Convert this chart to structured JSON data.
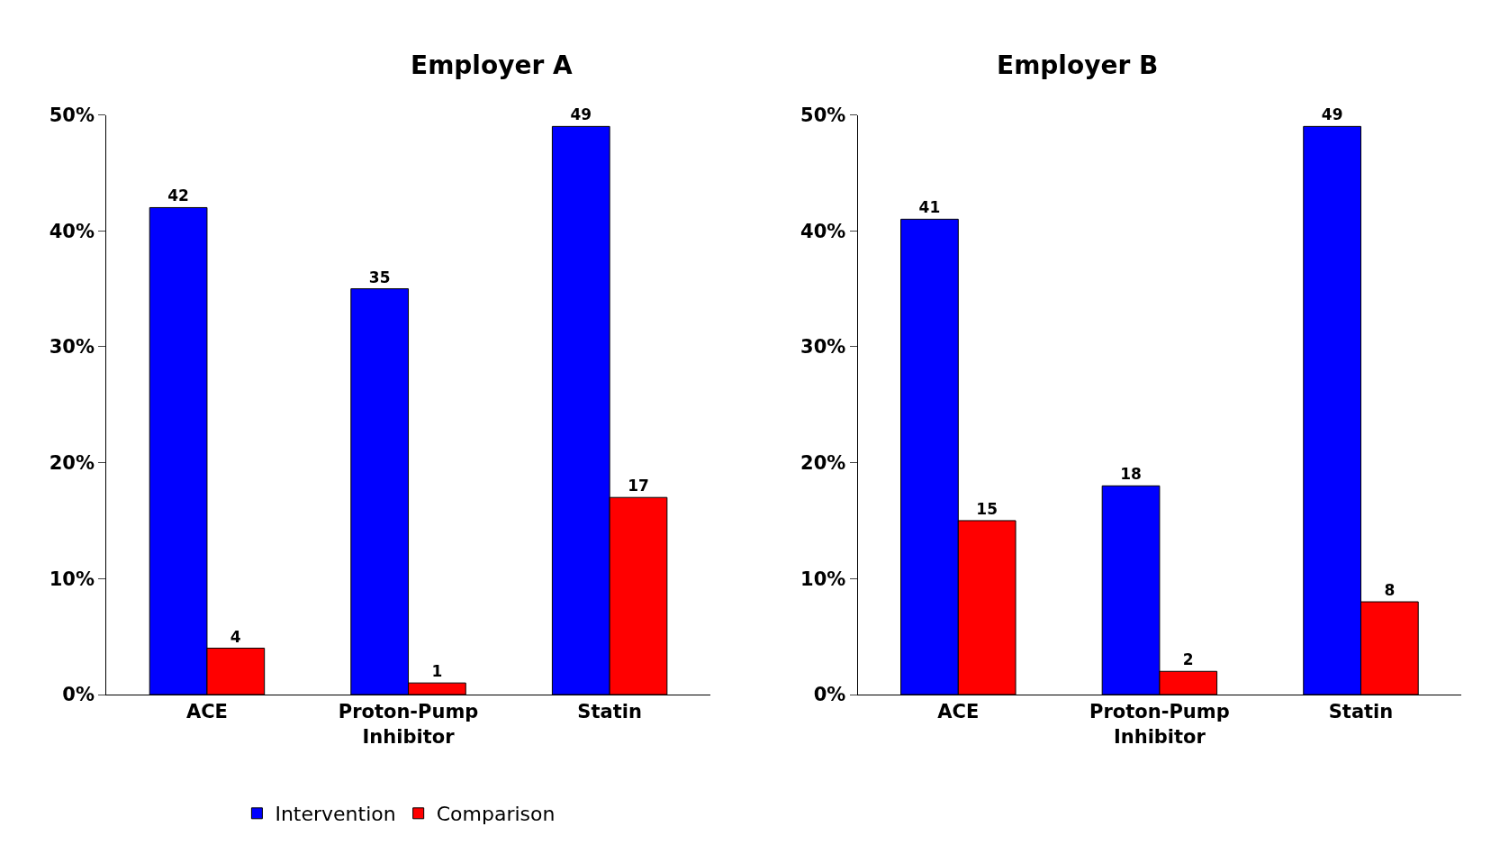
{
  "chart_data": [
    {
      "type": "bar",
      "title": "Employer A",
      "categories": [
        "ACE",
        "Proton-Pump Inhibitor",
        "Statin"
      ],
      "series": [
        {
          "name": "Intervention",
          "color": "#0000ff",
          "values": [
            42,
            35,
            49
          ]
        },
        {
          "name": "Comparison",
          "color": "#ff0000",
          "values": [
            4,
            1,
            17
          ]
        }
      ],
      "ylim": [
        0,
        50
      ],
      "yticks": [
        {
          "value": 0,
          "label": "0%"
        },
        {
          "value": 10,
          "label": "10%"
        },
        {
          "value": 20,
          "label": "20%"
        },
        {
          "value": 30,
          "label": "30%"
        },
        {
          "value": 40,
          "label": "40%"
        },
        {
          "value": 50,
          "label": "50%"
        }
      ],
      "data_labels": true,
      "legend": "bottom"
    },
    {
      "type": "bar",
      "title": "Employer B",
      "categories": [
        "ACE",
        "Proton-Pump Inhibitor",
        "Statin"
      ],
      "series": [
        {
          "color": "#0000ff",
          "values": [
            41,
            18,
            49
          ]
        },
        {
          "color": "#ff0000",
          "values": [
            15,
            2,
            8
          ]
        }
      ],
      "ylim": [
        0,
        50
      ],
      "yticks": [
        {
          "value": 0,
          "label": "0%"
        },
        {
          "value": 10,
          "label": "10%"
        },
        {
          "value": 20,
          "label": "20%"
        },
        {
          "value": 30,
          "label": "30%"
        },
        {
          "value": 40,
          "label": "40%"
        },
        {
          "value": 50,
          "label": "50%"
        }
      ],
      "data_labels": true,
      "legend": false
    }
  ]
}
